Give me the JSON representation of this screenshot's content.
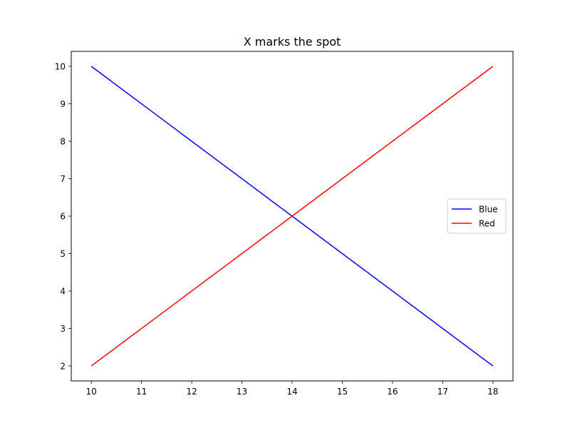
{
  "chart_data": {
    "type": "line",
    "title": "X marks the spot",
    "xlabel": "",
    "ylabel": "",
    "xlim": [
      9.6,
      18.4
    ],
    "ylim": [
      1.6,
      10.4
    ],
    "xticks": [
      10,
      11,
      12,
      13,
      14,
      15,
      16,
      17,
      18
    ],
    "yticks": [
      2,
      3,
      4,
      5,
      6,
      7,
      8,
      9,
      10
    ],
    "grid": false,
    "legend_position": "center-right",
    "series": [
      {
        "name": "Blue",
        "color": "#0000ff",
        "x": [
          10,
          18
        ],
        "y": [
          10,
          2
        ]
      },
      {
        "name": "Red",
        "color": "#ff0000",
        "x": [
          10,
          18
        ],
        "y": [
          2,
          10
        ]
      }
    ]
  }
}
